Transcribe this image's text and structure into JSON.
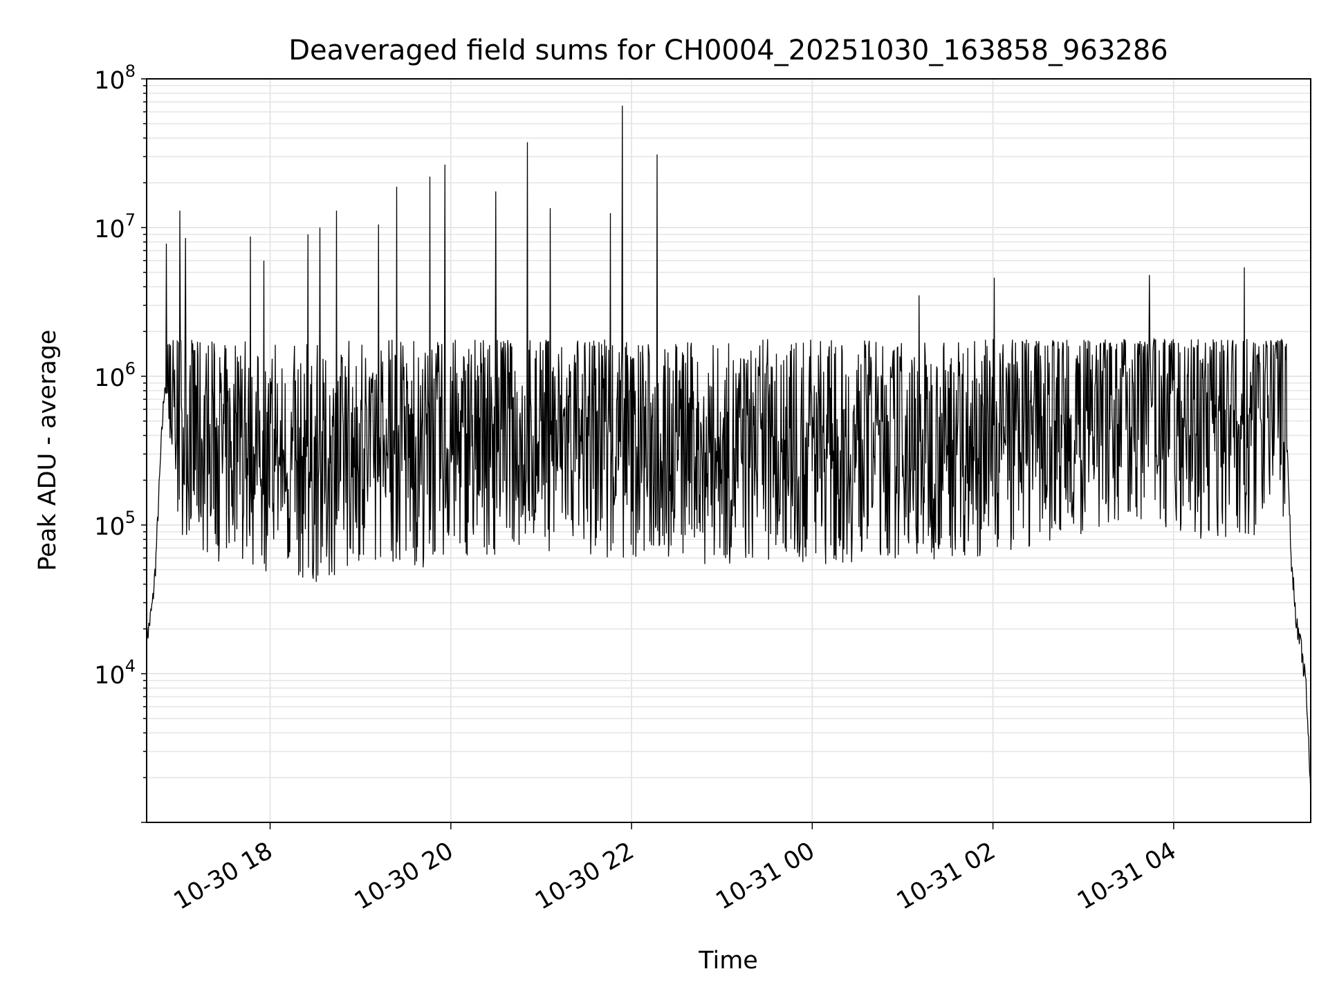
{
  "chart_data": {
    "type": "line",
    "title": "Deaveraged field sums for CH0004_20251030_163858_963286",
    "xlabel": "Time",
    "ylabel": "Peak ADU - average",
    "xlim": [
      "2025-10-30 16:38",
      "2025-10-31 05:31"
    ],
    "ylim": [
      1000,
      100000000
    ],
    "yscale": "log",
    "grid": true,
    "line_color": "#000000",
    "grid_color": "#e6e6e6",
    "x_ticks": [
      {
        "value": "2025-10-30 18:00",
        "label": "10-30 18"
      },
      {
        "value": "2025-10-30 20:00",
        "label": "10-30 20"
      },
      {
        "value": "2025-10-30 22:00",
        "label": "10-30 22"
      },
      {
        "value": "2025-10-31 00:00",
        "label": "10-31 00"
      },
      {
        "value": "2025-10-31 02:00",
        "label": "10-31 02"
      },
      {
        "value": "2025-10-31 04:00",
        "label": "10-31 04"
      }
    ],
    "y_ticks": [
      {
        "value": 10000,
        "base": "10",
        "exp": "4"
      },
      {
        "value": 100000,
        "base": "10",
        "exp": "5"
      },
      {
        "value": 1000000,
        "base": "10",
        "exp": "6"
      },
      {
        "value": 10000000,
        "base": "10",
        "exp": "7"
      },
      {
        "value": 100000000,
        "base": "10",
        "exp": "8"
      }
    ],
    "series": [
      {
        "points": [
          [
            "2025-10-30 16:38",
            17000
          ],
          [
            "2025-10-30 16:40",
            22000
          ],
          [
            "2025-10-30 16:42",
            30000
          ],
          [
            "2025-10-30 16:44",
            55000
          ],
          [
            "2025-10-30 16:46",
            150000
          ],
          [
            "2025-10-30 16:48",
            400000
          ],
          [
            "2025-10-30 16:50",
            900000
          ],
          [
            "2025-10-30 16:52",
            700000
          ],
          [
            "2025-10-30 17:00",
            500000
          ],
          [
            "2025-10-30 17:15",
            350000
          ],
          [
            "2025-10-30 17:30",
            300000
          ],
          [
            "2025-10-30 17:45",
            280000
          ],
          [
            "2025-10-30 18:00",
            260000
          ],
          [
            "2025-10-30 18:30",
            220000
          ],
          [
            "2025-10-30 19:00",
            320000
          ],
          [
            "2025-10-30 19:30",
            270000
          ],
          [
            "2025-10-30 20:00",
            330000
          ],
          [
            "2025-10-30 21:00",
            380000
          ],
          [
            "2025-10-30 22:00",
            320000
          ],
          [
            "2025-10-30 23:00",
            300000
          ],
          [
            "2025-10-31 00:00",
            300000
          ],
          [
            "2025-10-31 01:00",
            320000
          ],
          [
            "2025-10-31 02:00",
            350000
          ],
          [
            "2025-10-31 03:00",
            450000
          ],
          [
            "2025-10-31 03:30",
            650000
          ],
          [
            "2025-10-31 04:00",
            500000
          ],
          [
            "2025-10-31 04:30",
            400000
          ],
          [
            "2025-10-31 05:00",
            420000
          ],
          [
            "2025-10-31 05:10",
            1000000
          ],
          [
            "2025-10-31 05:15",
            400000
          ],
          [
            "2025-10-31 05:18",
            60000
          ],
          [
            "2025-10-31 05:22",
            20000
          ],
          [
            "2025-10-31 05:25",
            14000
          ],
          [
            "2025-10-31 05:28",
            8000
          ],
          [
            "2025-10-31 05:31",
            1500
          ]
        ],
        "peaks": [
          [
            "2025-10-30 16:51",
            7800000
          ],
          [
            "2025-10-30 17:00",
            13000000
          ],
          [
            "2025-10-30 17:04",
            8500000
          ],
          [
            "2025-10-30 17:47",
            8700000
          ],
          [
            "2025-10-30 17:56",
            6000000
          ],
          [
            "2025-10-30 18:25",
            9000000
          ],
          [
            "2025-10-30 18:33",
            10000000
          ],
          [
            "2025-10-30 18:44",
            13000000
          ],
          [
            "2025-10-30 19:12",
            10500000
          ],
          [
            "2025-10-30 19:24",
            18800000
          ],
          [
            "2025-10-30 19:46",
            22000000
          ],
          [
            "2025-10-30 19:56",
            26500000
          ],
          [
            "2025-10-30 20:30",
            17500000
          ],
          [
            "2025-10-30 20:51",
            37500000
          ],
          [
            "2025-10-30 21:06",
            13500000
          ],
          [
            "2025-10-30 21:46",
            12500000
          ],
          [
            "2025-10-30 21:54",
            66000000
          ],
          [
            "2025-10-30 22:17",
            31000000
          ],
          [
            "2025-10-31 01:11",
            3500000
          ],
          [
            "2025-10-31 02:01",
            4600000
          ],
          [
            "2025-10-31 03:44",
            4800000
          ],
          [
            "2025-10-31 04:47",
            5400000
          ]
        ]
      }
    ]
  }
}
